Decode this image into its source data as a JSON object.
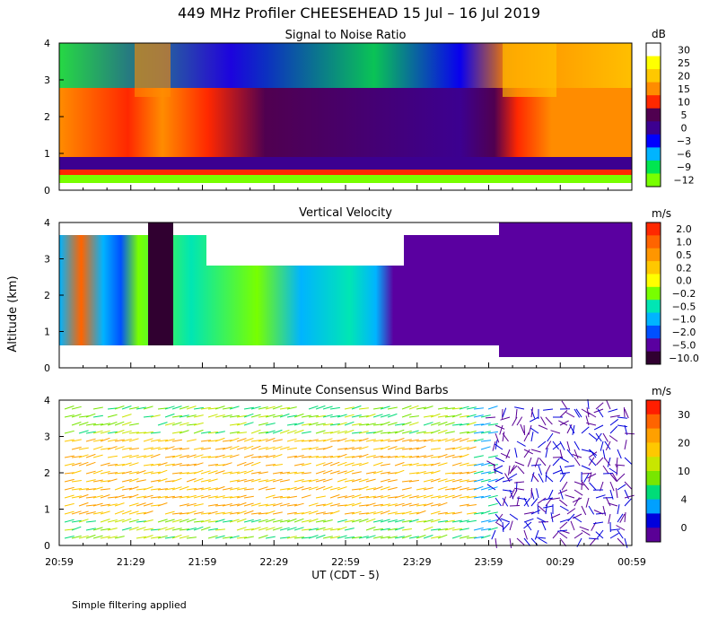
{
  "title": "449 MHz Profiler CHEESEHEAD 15 Jul – 16 Jul 2019",
  "y_axis_label": "Altitude (km)",
  "x_axis_label": "UT  (CDT – 5)",
  "footnote": "Simple filtering applied",
  "x_ticks": [
    "20:59",
    "21:29",
    "21:59",
    "22:29",
    "22:59",
    "23:29",
    "23:59",
    "00:29",
    "00:59"
  ],
  "y_ticks": [
    "0",
    "1",
    "2",
    "3",
    "4"
  ],
  "chart_data": [
    {
      "type": "heatmap",
      "title": "Signal to Noise Ratio",
      "xlabel": "UT  (CDT – 5)",
      "ylabel": "Altitude (km)",
      "ylim": [
        0,
        4
      ],
      "x_range": [
        "20:59",
        "00:59"
      ],
      "colorbar": {
        "unit": "dB",
        "ticks": [
          "30",
          "25",
          "20",
          "15",
          "10",
          "5",
          "0",
          "−3",
          "−6",
          "−9",
          "−12"
        ],
        "colors": [
          "#ffffff",
          "#ffff00",
          "#ffc800",
          "#ff8c00",
          "#ff2800",
          "#500050",
          "#3c0090",
          "#0000ff",
          "#00b4ff",
          "#00e650",
          "#78ff00"
        ]
      }
    },
    {
      "type": "heatmap",
      "title": "Vertical Velocity",
      "xlabel": "UT  (CDT – 5)",
      "ylabel": "Altitude (km)",
      "ylim": [
        0,
        4
      ],
      "x_range": [
        "20:59",
        "00:59"
      ],
      "colorbar": {
        "unit": "m/s",
        "ticks": [
          "2.0",
          "1.0",
          "0.5",
          "0.2",
          "0.0",
          "−0.2",
          "−0.5",
          "−1.0",
          "−2.0",
          "−5.0",
          "−10.0"
        ],
        "colors": [
          "#ff2800",
          "#ff6400",
          "#ff9600",
          "#ffc800",
          "#ffff00",
          "#78ff00",
          "#00e6b4",
          "#00b4ff",
          "#0050ff",
          "#5a00a0",
          "#300030"
        ]
      }
    },
    {
      "type": "scatter",
      "title": "5 Minute Consensus Wind Barbs",
      "xlabel": "UT  (CDT – 5)",
      "ylabel": "Altitude (km)",
      "ylim": [
        0,
        4
      ],
      "x_range": [
        "20:59",
        "00:59"
      ],
      "colorbar": {
        "unit": "m/s",
        "ticks": [
          "30",
          "20",
          "10",
          "4",
          "0"
        ],
        "colors": [
          "#ff1e00",
          "#ff6400",
          "#ffa000",
          "#ffc800",
          "#c8e600",
          "#78e600",
          "#00dc78",
          "#00a0ff",
          "#0000dc",
          "#5a0096"
        ]
      }
    }
  ]
}
